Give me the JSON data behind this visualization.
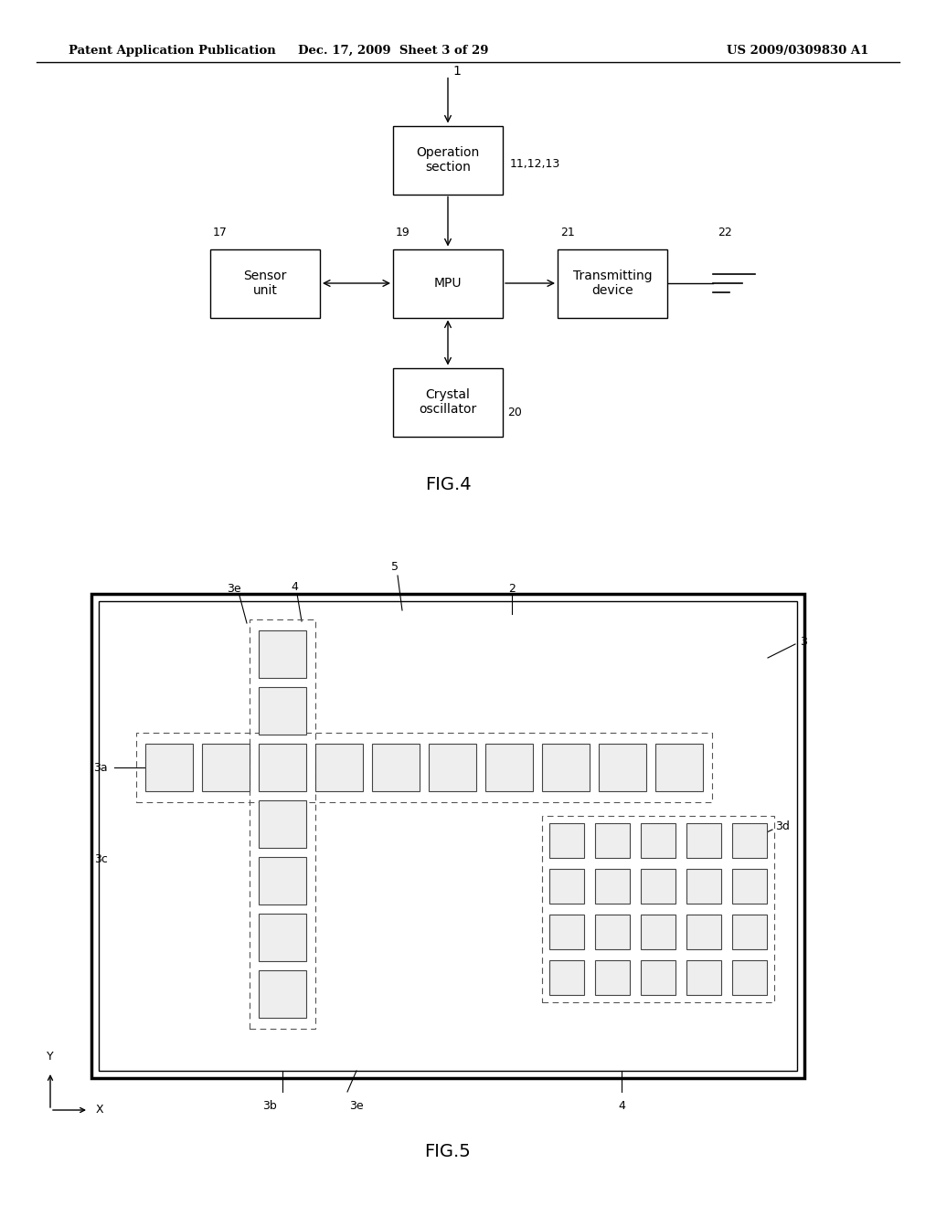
{
  "bg_color": "#ffffff",
  "header_left": "Patent Application Publication",
  "header_mid": "Dec. 17, 2009  Sheet 3 of 29",
  "header_right": "US 2009/0309830 A1",
  "fig4_title": "FIG.4",
  "fig5_title": "FIG.5"
}
